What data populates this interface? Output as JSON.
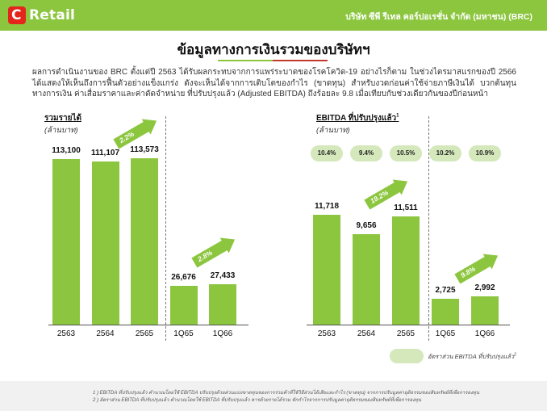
{
  "header": {
    "logo_text": "Retail",
    "logo_mark": "C",
    "company": "บริษัท ซีพี รีเทล คอร์ปอเรชั่น จำกัด (มหาชน) (BRC)"
  },
  "page_title": "ข้อมูลทางการเงินรวมของบริษัทฯ",
  "intro": "ผลการดำเนินงานของ BRC ตั้งแต่ปี 2563 ได้รับผลกระทบจากการแพร่ระบาดของโรคโควิด-19 อย่างไรก็ตาม ในช่วงไตรมาสแรกของปี 2566 ได้แสดงให้เห็นถึงการฟื้นตัวอย่างแข็งแกร่ง ดังจะเห็นได้จากการเติบโตของกำไร (ขาดทุน) สำหรับงวดก่อนค่าใช้จ่ายภาษีเงินได้ บวกต้นทุนทางการเงิน ค่าเสื่อมราคาและค่าตัดจำหน่าย ที่ปรับปรุงแล้ว (Adjusted EBITDA) ถึงร้อยละ 9.8 เมื่อเทียบกับช่วงเดียวกันของปีก่อนหน้า",
  "colors": {
    "accent": "#8cc63f",
    "pill": "#d4e8bb",
    "brand_red": "#e4251c"
  },
  "chart_data": [
    {
      "type": "bar",
      "title": "รวมรายได้",
      "unit": "(ล้านบาท)",
      "categories": [
        "2563",
        "2564",
        "2565",
        "1Q65",
        "1Q66"
      ],
      "values": [
        113100,
        111107,
        113573,
        26676,
        27433
      ],
      "value_labels": [
        "113,100",
        "111,107",
        "113,573",
        "26,676",
        "27,433"
      ],
      "growth_annotations": [
        "2.2%",
        "2.8%"
      ]
    },
    {
      "type": "bar",
      "title": "EBITDA ที่ปรับปรุงแล้ว",
      "title_sup": "1",
      "unit": "(ล้านบาท)",
      "categories": [
        "2563",
        "2564",
        "2565",
        "1Q65",
        "1Q66"
      ],
      "values": [
        11718,
        9656,
        11511,
        2725,
        2992
      ],
      "value_labels": [
        "11,718",
        "9,656",
        "11,511",
        "2,725",
        "2,992"
      ],
      "margins": [
        "10.4%",
        "9.4%",
        "10.5%",
        "10.2%",
        "10.9%"
      ],
      "growth_annotations": [
        "19.2%",
        "9.8%"
      ],
      "legend_label": "อัตราส่วน EBITDA ที่ปรับปรุงแล้ว",
      "legend_sup": "2"
    }
  ],
  "footnotes": [
    "1 ) EBITDA ที่ปรับปรุงแล้ว คำนวณโดยใช้ EBITDA ปรับปรุงด้วยส่วนแบ่งขาดทุนของการร่วมค้าที่ใช้วิธีส่วนได้เสียและกำไร (ขาดทุน) จากการปรับมูลค่ายุติธรรมของสินทรัพย์ที่เพื่อการลงทุน",
    "2 ) อัตราส่วน EBITDA ที่ปรับปรุงแล้ว คำนวณโดยใช้ EBITDA ที่ปรับปรุงแล้ว หารด้วยรายได้รวม หักกำไรจากการปรับมูลค่ายุติธรรมของสินทรัพย์ที่เพื่อการลงทุน"
  ]
}
